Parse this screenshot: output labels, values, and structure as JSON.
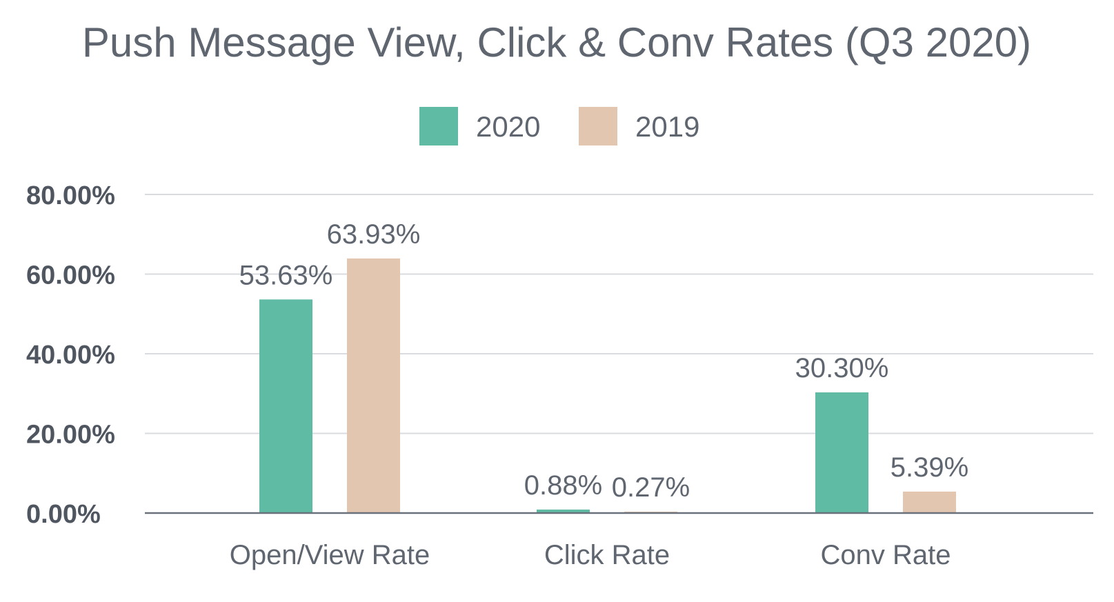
{
  "chart_data": {
    "type": "bar",
    "title": "Push Message View, Click & Conv Rates (Q3 2020)",
    "categories": [
      "Open/View Rate",
      "Click Rate",
      "Conv Rate"
    ],
    "series": [
      {
        "name": "2020",
        "values": [
          53.63,
          0.88,
          30.3
        ],
        "labels": [
          "53.63%",
          "0.88%",
          "30.30%"
        ],
        "color": "#5fbba3"
      },
      {
        "name": "2019",
        "values": [
          63.93,
          0.27,
          5.39
        ],
        "labels": [
          "63.93%",
          "0.27%",
          "5.39%"
        ],
        "color": "#e3c6b0"
      }
    ],
    "ylim": [
      0,
      80
    ],
    "yticks": [
      0,
      20,
      40,
      60,
      80
    ],
    "ytick_labels": [
      "0.00%",
      "20.00%",
      "40.00%",
      "60.00%",
      "80.00%"
    ],
    "xlabel": "",
    "ylabel": "",
    "grid": true,
    "legend_position": "top-center"
  }
}
